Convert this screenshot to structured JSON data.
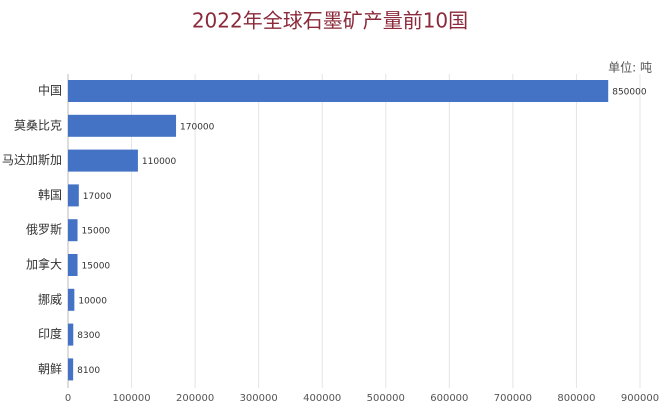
{
  "chart_data": {
    "type": "bar",
    "orientation": "horizontal",
    "title": "2022年全球石墨矿产量前10国",
    "unit_label": "单位: 吨",
    "categories": [
      "中国",
      "莫桑比克",
      "马达加斯加",
      "韩国",
      "俄罗斯",
      "加拿大",
      "挪威",
      "印度",
      "朝鲜"
    ],
    "values": [
      850000,
      170000,
      110000,
      17000,
      15000,
      15000,
      10000,
      8300,
      8100
    ],
    "color": "#4472c4",
    "xlim": [
      0,
      900000
    ],
    "xticks": [
      0,
      100000,
      200000,
      300000,
      400000,
      500000,
      600000,
      700000,
      800000,
      900000
    ],
    "grid": true
  }
}
